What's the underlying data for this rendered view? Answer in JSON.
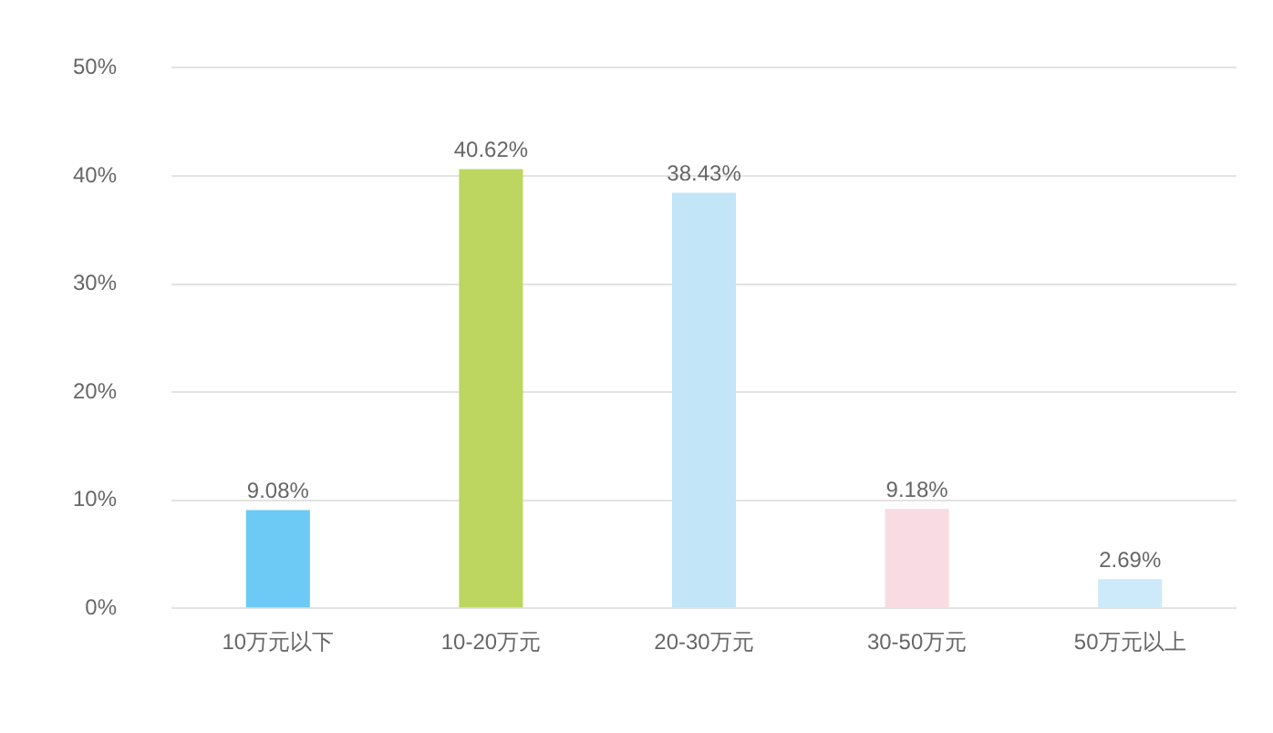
{
  "chart_data": {
    "type": "bar",
    "categories": [
      "10万元以下",
      "10-20万元",
      "20-30万元",
      "30-50万元",
      "50万元以上"
    ],
    "values": [
      9.08,
      40.62,
      38.43,
      9.18,
      2.69
    ],
    "colors": [
      "#6ccaf5",
      "#bdd660",
      "#c2e5f7",
      "#f9dce3",
      "#cdeafa"
    ],
    "value_labels": [
      "9.08%",
      "40.62%",
      "38.43%",
      "9.18%",
      "2.69%"
    ],
    "ylim": [
      0,
      50
    ],
    "yticks": [
      {
        "value": 0,
        "label": "0%"
      },
      {
        "value": 10,
        "label": "10%"
      },
      {
        "value": 20,
        "label": "20%"
      },
      {
        "value": 30,
        "label": "30%"
      },
      {
        "value": 40,
        "label": "40%"
      },
      {
        "value": 50,
        "label": "50%"
      }
    ],
    "grid": "y",
    "legend": false
  }
}
